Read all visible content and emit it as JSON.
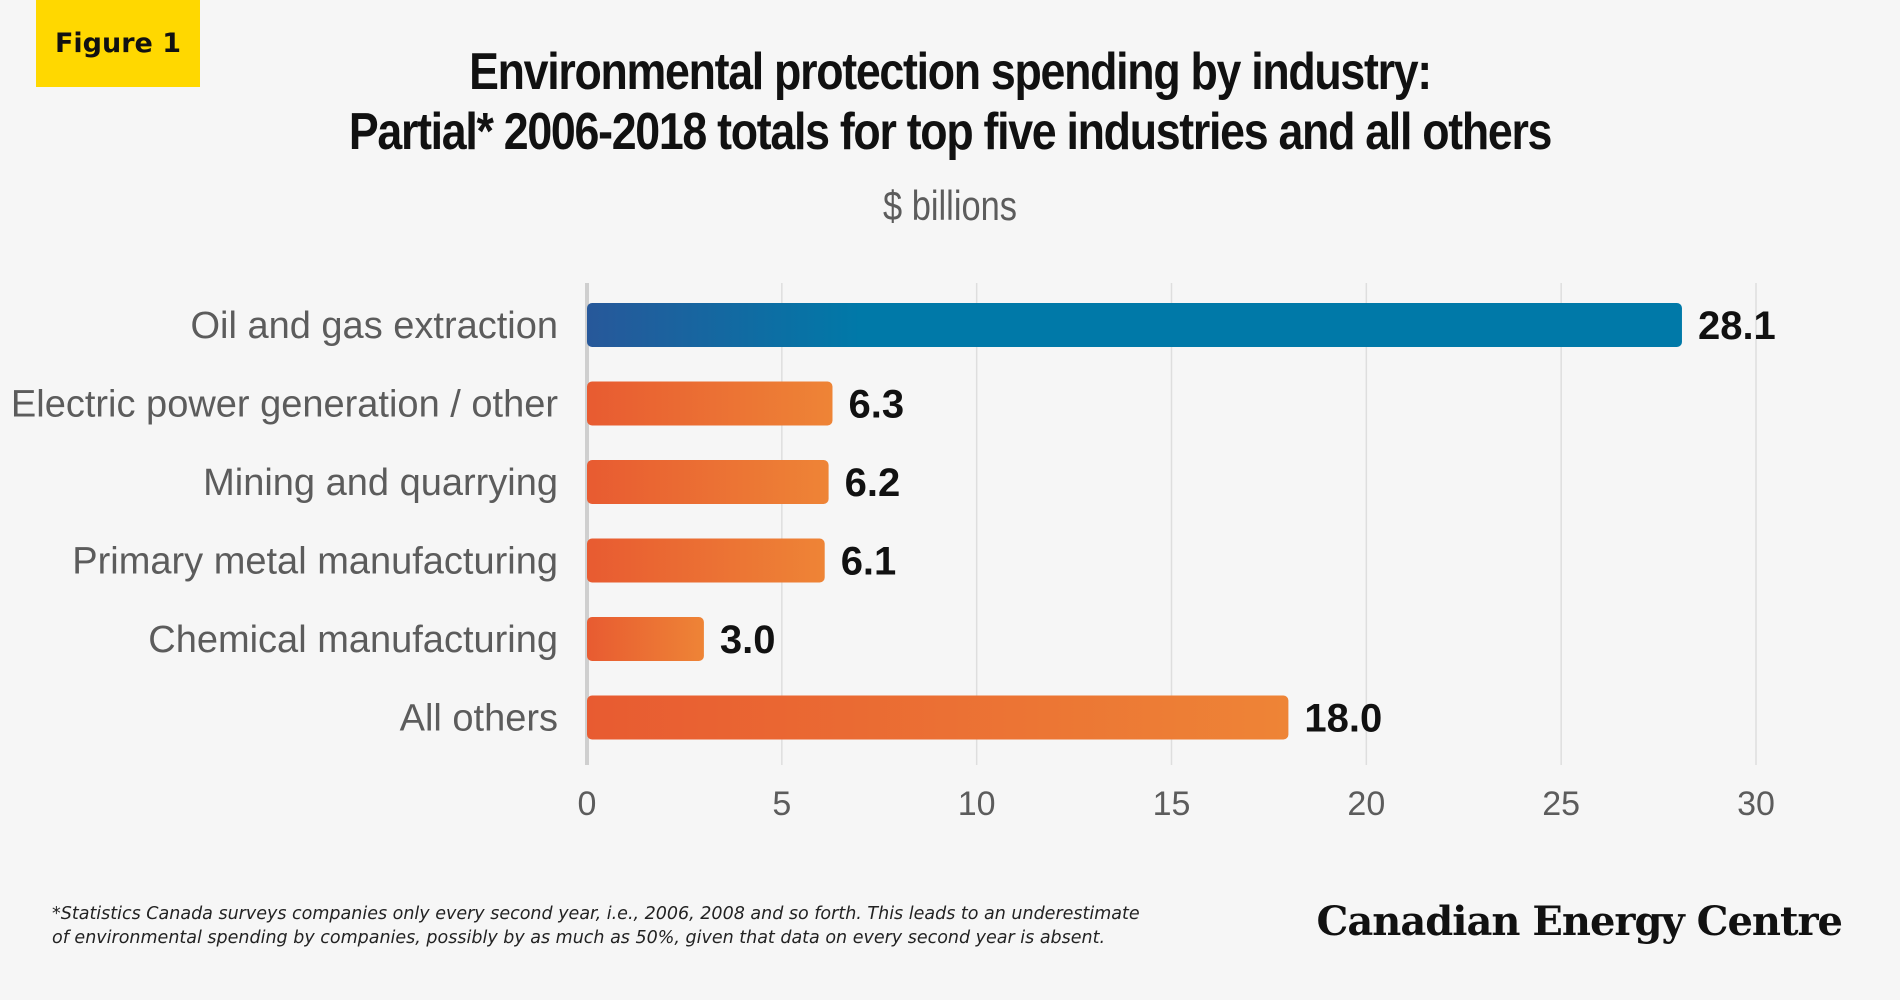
{
  "badge": "Figure 1",
  "chart_data": {
    "type": "bar",
    "orientation": "horizontal",
    "title": [
      "Environmental protection spending by industry:",
      "Partial* 2006-2018 totals for top five industries and all others"
    ],
    "unit": "$ billions",
    "categories": [
      "Oil and gas extraction",
      "Electric power generation / other",
      "Mining and quarrying",
      "Primary metal manufacturing",
      "Chemical manufacturing",
      "All others"
    ],
    "values": [
      28.1,
      6.3,
      6.2,
      6.1,
      3.0,
      18.0
    ],
    "value_labels": [
      "28.1",
      "6.3",
      "6.2",
      "6.1",
      "3.0",
      "18.0"
    ],
    "xlim": [
      0,
      30
    ],
    "xticks": [
      0,
      5,
      10,
      15,
      20,
      25,
      30
    ],
    "grid": "vertical",
    "colors": {
      "highlight": "#0079a8",
      "highlight_start": "#27589a",
      "other": "#ee8436",
      "other_start": "#e85b31"
    },
    "highlight_index": 0
  },
  "footnote": [
    "*Statistics Canada surveys companies only every second year, i.e., 2006, 2008 and so forth. This leads to an underestimate",
    "of environmental spending by companies, possibly by as much as 50%, given that data on every second year is absent."
  ],
  "brand": "Canadian Energy Centre"
}
